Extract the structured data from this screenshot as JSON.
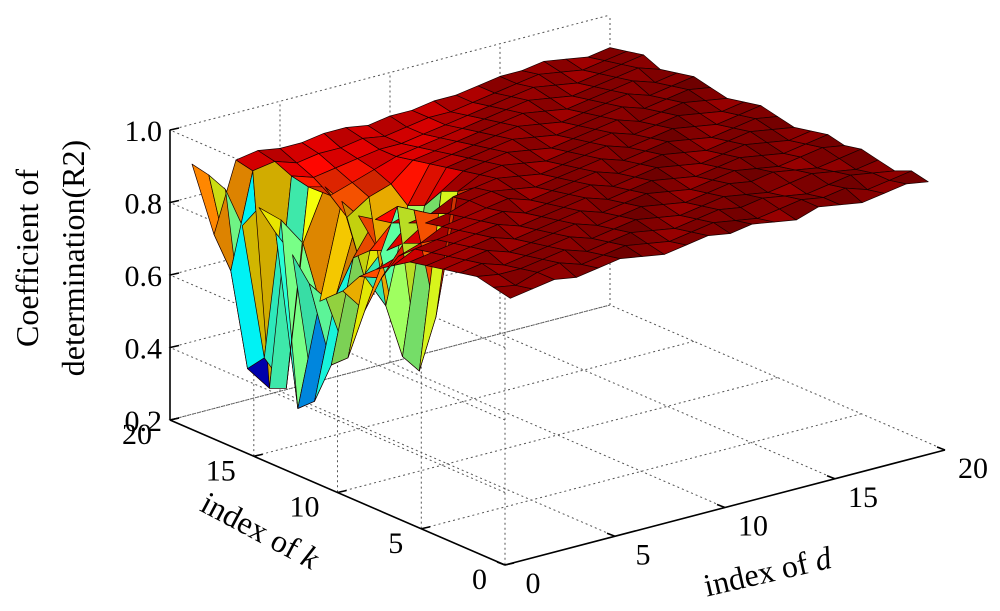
{
  "chart_data": {
    "type": "surface3d",
    "title": "",
    "xlabel_prefix": "index of ",
    "xlabel_var": "d",
    "ylabel_prefix": "index of ",
    "ylabel_var": "k",
    "zlabel_line1": "Coefficient of",
    "zlabel_line2": "determination(R2)",
    "xlim": [
      0,
      20
    ],
    "ylim": [
      0,
      20
    ],
    "zlim": [
      0.2,
      1.0
    ],
    "x_ticks": [
      "0",
      "5",
      "10",
      "15",
      "20"
    ],
    "y_ticks": [
      "0",
      "5",
      "10",
      "15",
      "20"
    ],
    "z_ticks": [
      "0.2",
      "0.4",
      "0.6",
      "0.8",
      "1.0"
    ],
    "grid": true,
    "colormap": "jet",
    "x": [
      1,
      2,
      3,
      4,
      5,
      6,
      7,
      8,
      9,
      10,
      11,
      12,
      13,
      14,
      15,
      16,
      17,
      18,
      19,
      20
    ],
    "y": [
      1,
      2,
      3,
      4,
      5,
      6,
      7,
      8,
      9,
      10,
      11,
      12,
      13,
      14,
      15,
      16,
      17,
      18,
      19,
      20
    ],
    "z": [
      [
        0.9,
        0.91,
        0.92,
        0.91,
        0.92,
        0.93,
        0.92,
        0.91,
        0.92,
        0.93,
        0.92,
        0.93,
        0.92,
        0.91,
        0.93,
        0.92,
        0.91,
        0.92,
        0.93,
        0.92
      ],
      [
        0.91,
        0.9,
        0.92,
        0.93,
        0.91,
        0.92,
        0.93,
        0.92,
        0.91,
        0.92,
        0.93,
        0.92,
        0.91,
        0.92,
        0.93,
        0.92,
        0.93,
        0.91,
        0.92,
        0.93
      ],
      [
        0.92,
        0.91,
        0.91,
        0.92,
        0.93,
        0.91,
        0.92,
        0.93,
        0.92,
        0.91,
        0.92,
        0.93,
        0.92,
        0.93,
        0.92,
        0.91,
        0.92,
        0.93,
        0.92,
        0.91
      ],
      [
        0.91,
        0.92,
        0.9,
        0.91,
        0.92,
        0.93,
        0.91,
        0.92,
        0.93,
        0.92,
        0.91,
        0.92,
        0.93,
        0.92,
        0.91,
        0.92,
        0.93,
        0.92,
        0.91,
        0.92
      ],
      [
        0.9,
        0.91,
        0.92,
        0.9,
        0.91,
        0.92,
        0.93,
        0.91,
        0.92,
        0.93,
        0.92,
        0.91,
        0.92,
        0.93,
        0.92,
        0.93,
        0.92,
        0.91,
        0.92,
        0.93
      ],
      [
        0.89,
        0.9,
        0.91,
        0.92,
        0.9,
        0.91,
        0.92,
        0.93,
        0.91,
        0.92,
        0.93,
        0.92,
        0.91,
        0.92,
        0.93,
        0.92,
        0.91,
        0.92,
        0.93,
        0.92
      ],
      [
        0.88,
        0.89,
        0.9,
        0.91,
        0.92,
        0.9,
        0.91,
        0.92,
        0.93,
        0.91,
        0.92,
        0.93,
        0.92,
        0.91,
        0.92,
        0.93,
        0.92,
        0.91,
        0.92,
        0.93
      ],
      [
        0.85,
        0.88,
        0.89,
        0.9,
        0.91,
        0.92,
        0.9,
        0.91,
        0.92,
        0.93,
        0.91,
        0.92,
        0.93,
        0.92,
        0.91,
        0.92,
        0.93,
        0.92,
        0.91,
        0.92
      ],
      [
        0.82,
        0.84,
        0.86,
        0.89,
        0.9,
        0.91,
        0.92,
        0.9,
        0.91,
        0.92,
        0.93,
        0.91,
        0.92,
        0.93,
        0.92,
        0.91,
        0.92,
        0.93,
        0.92,
        0.91
      ],
      [
        0.78,
        0.76,
        0.84,
        0.88,
        0.89,
        0.91,
        0.92,
        0.91,
        0.9,
        0.91,
        0.92,
        0.93,
        0.91,
        0.92,
        0.93,
        0.92,
        0.91,
        0.92,
        0.93,
        0.92
      ],
      [
        0.72,
        0.65,
        0.8,
        0.86,
        0.87,
        0.9,
        0.91,
        0.92,
        0.91,
        0.9,
        0.91,
        0.92,
        0.93,
        0.91,
        0.92,
        0.93,
        0.92,
        0.91,
        0.92,
        0.93
      ],
      [
        0.68,
        0.5,
        0.78,
        0.84,
        0.86,
        0.55,
        0.88,
        0.91,
        0.92,
        0.91,
        0.9,
        0.91,
        0.92,
        0.93,
        0.91,
        0.92,
        0.93,
        0.92,
        0.91,
        0.92
      ],
      [
        0.7,
        0.46,
        0.74,
        0.83,
        0.85,
        0.38,
        0.86,
        0.9,
        0.91,
        0.92,
        0.91,
        0.9,
        0.91,
        0.92,
        0.93,
        0.91,
        0.92,
        0.93,
        0.92,
        0.91
      ],
      [
        0.76,
        0.34,
        0.62,
        0.82,
        0.7,
        0.4,
        0.8,
        0.89,
        0.9,
        0.91,
        0.92,
        0.91,
        0.9,
        0.91,
        0.92,
        0.93,
        0.91,
        0.92,
        0.93,
        0.92
      ],
      [
        0.8,
        0.3,
        0.58,
        0.84,
        0.62,
        0.52,
        0.78,
        0.88,
        0.89,
        0.9,
        0.91,
        0.92,
        0.91,
        0.9,
        0.91,
        0.92,
        0.93,
        0.91,
        0.92,
        0.93
      ],
      [
        0.85,
        0.8,
        0.72,
        0.86,
        0.76,
        0.8,
        0.82,
        0.87,
        0.88,
        0.89,
        0.9,
        0.91,
        0.92,
        0.91,
        0.9,
        0.91,
        0.92,
        0.93,
        0.91,
        0.92
      ],
      [
        0.78,
        0.4,
        0.3,
        0.84,
        0.8,
        0.82,
        0.84,
        0.86,
        0.87,
        0.88,
        0.89,
        0.9,
        0.91,
        0.92,
        0.91,
        0.9,
        0.91,
        0.92,
        0.93,
        0.91
      ],
      [
        0.86,
        0.35,
        0.28,
        0.85,
        0.83,
        0.84,
        0.85,
        0.86,
        0.86,
        0.87,
        0.88,
        0.89,
        0.9,
        0.91,
        0.92,
        0.91,
        0.9,
        0.91,
        0.92,
        0.93
      ],
      [
        0.88,
        0.6,
        0.86,
        0.87,
        0.85,
        0.86,
        0.86,
        0.87,
        0.86,
        0.87,
        0.88,
        0.88,
        0.89,
        0.9,
        0.91,
        0.92,
        0.91,
        0.9,
        0.91,
        0.92
      ],
      [
        0.89,
        0.68,
        0.87,
        0.88,
        0.87,
        0.87,
        0.88,
        0.88,
        0.87,
        0.88,
        0.88,
        0.89,
        0.89,
        0.9,
        0.91,
        0.91,
        0.92,
        0.91,
        0.9,
        0.91
      ]
    ]
  }
}
